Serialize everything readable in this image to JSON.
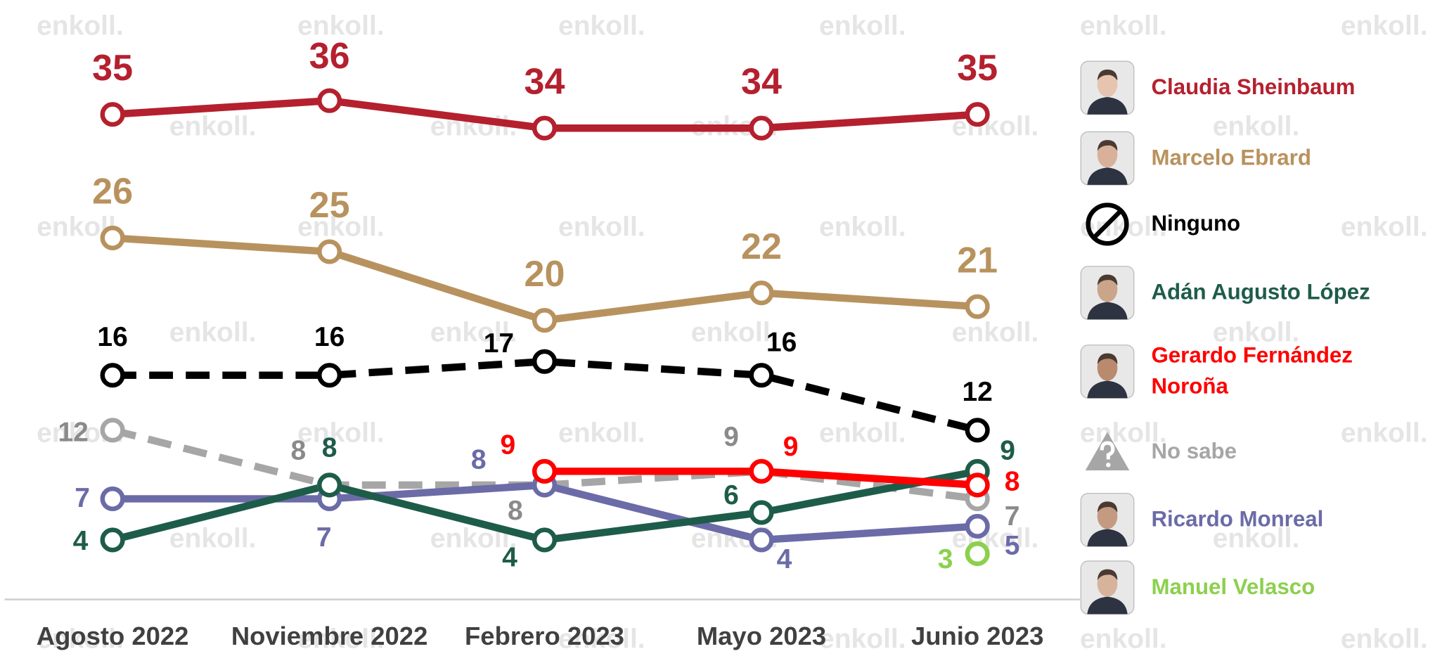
{
  "chart_data": {
    "type": "line",
    "watermark": "enkoll.",
    "categories": [
      "Agosto 2022",
      "Noviembre 2022",
      "Febrero 2023",
      "Mayo 2023",
      "Junio 2023"
    ],
    "series": [
      {
        "name": "Claudia Sheinbaum",
        "color": "#b5202e",
        "values": [
          35,
          36,
          34,
          34,
          35
        ]
      },
      {
        "name": "Marcelo Ebrard",
        "color": "#b8925e",
        "values": [
          26,
          25,
          20,
          22,
          21
        ]
      },
      {
        "name": "Ninguno",
        "color": "#000000",
        "dashed": true,
        "values": [
          16,
          16,
          17,
          16,
          12
        ]
      },
      {
        "name": "Adán Augusto López",
        "color": "#1e5c4a",
        "values": [
          4,
          8,
          4,
          6,
          9
        ]
      },
      {
        "name": "Gerardo Fernández Noroña",
        "color": "#ff0000",
        "values": [
          null,
          null,
          9,
          9,
          8
        ]
      },
      {
        "name": "No sabe",
        "color": "#a6a6a6",
        "dashed": true,
        "values": [
          12,
          8,
          8,
          9,
          7
        ]
      },
      {
        "name": "Ricardo Monreal",
        "color": "#6b6ba8",
        "values": [
          7,
          7,
          8,
          4,
          5
        ]
      },
      {
        "name": "Manuel Velasco",
        "color": "#8cd04e",
        "values": [
          null,
          null,
          null,
          null,
          3
        ]
      }
    ]
  }
}
